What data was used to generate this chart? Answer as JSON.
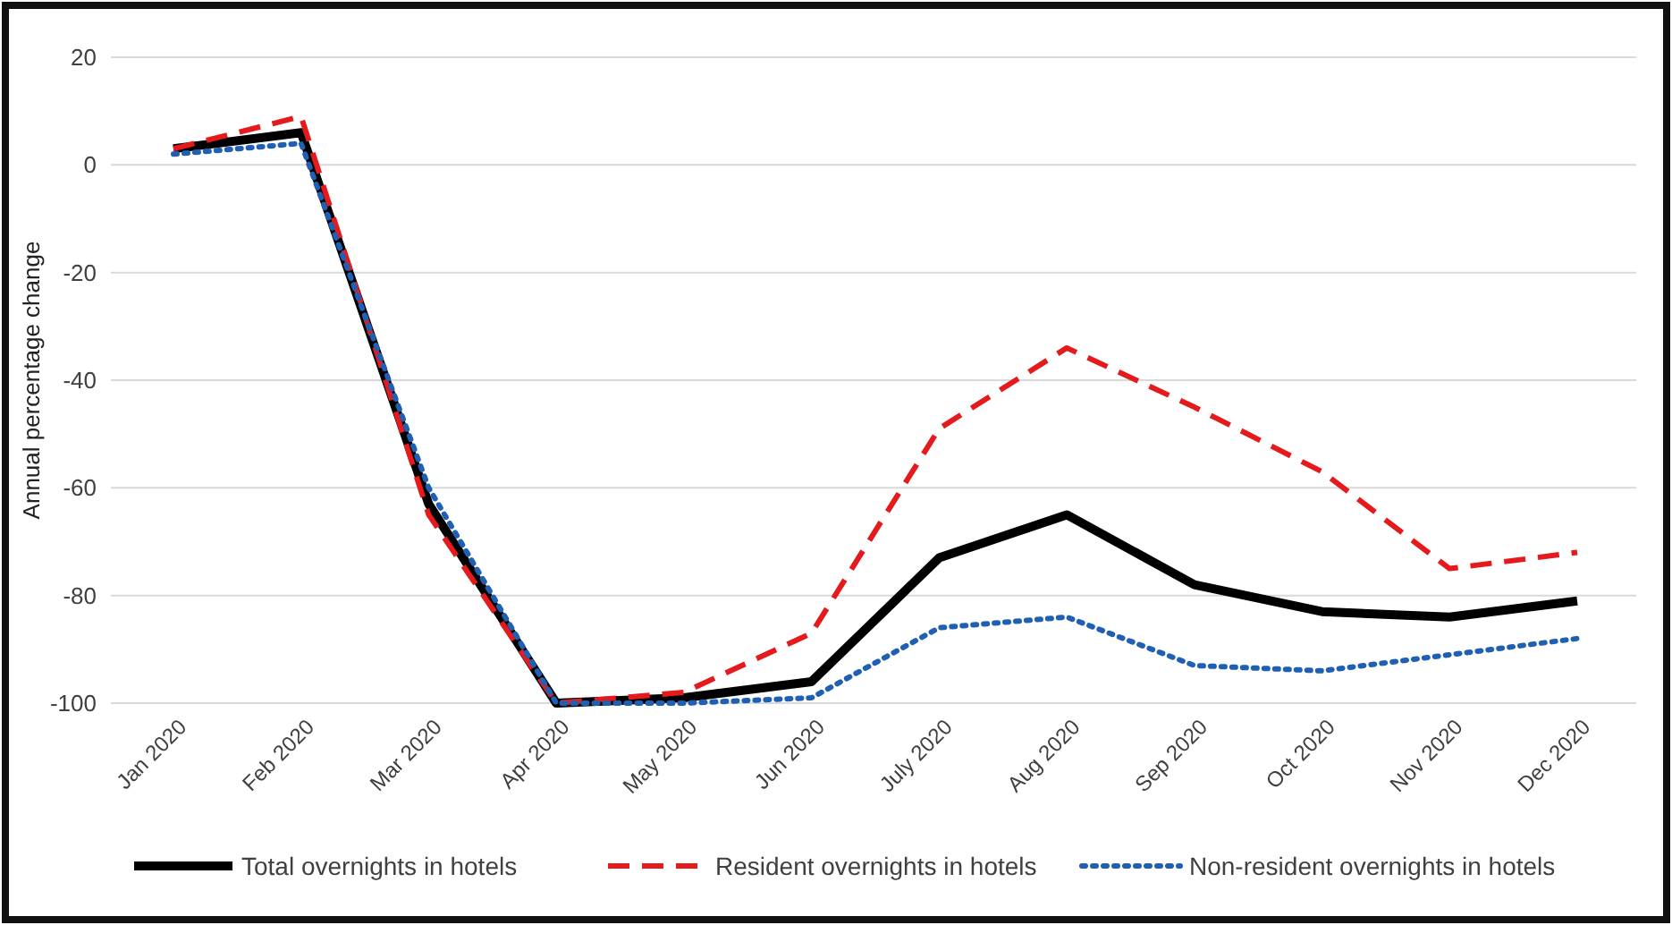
{
  "chart_data": {
    "type": "line",
    "ylabel": "Annual percentage change",
    "categories": [
      "Jan 2020",
      "Feb 2020",
      "Mar 2020",
      "Apr 2020",
      "May 2020",
      "Jun 2020",
      "July 2020",
      "Aug 2020",
      "Sep 2020",
      "Oct 2020",
      "Nov 2020",
      "Dec 2020"
    ],
    "series": [
      {
        "name": "Total overnights in hotels",
        "color": "#000000",
        "line_style": "solid",
        "values": [
          3,
          6,
          -63,
          -100,
          -99,
          -96,
          -73,
          -65,
          -78,
          -83,
          -84,
          -81
        ]
      },
      {
        "name": "Resident overnights in hotels",
        "color": "#e41a1c",
        "line_style": "dashed",
        "values": [
          3,
          9,
          -65,
          -100,
          -98,
          -87,
          -49,
          -34,
          -45,
          -57,
          -75,
          -72
        ]
      },
      {
        "name": "Non-resident overnights in hotels",
        "color": "#1f5fb4",
        "line_style": "dotted",
        "values": [
          2,
          4,
          -60,
          -100,
          -100,
          -99,
          -86,
          -84,
          -93,
          -94,
          -91,
          -88
        ]
      }
    ],
    "ylim": [
      -100,
      20
    ],
    "yticks": [
      -100,
      -80,
      -60,
      -40,
      -20,
      0,
      20
    ],
    "grid": "y",
    "legend": "bottom",
    "marker": "none"
  }
}
